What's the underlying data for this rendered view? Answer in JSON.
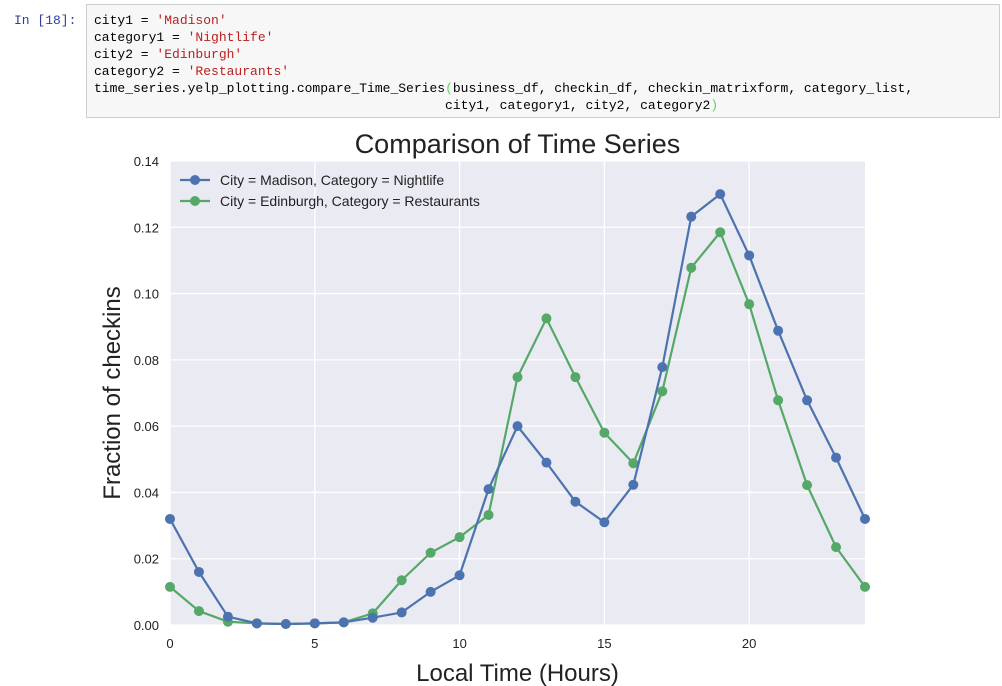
{
  "cell": {
    "prompt": "In [18]:",
    "line1": {
      "var": "city1 = ",
      "val": "'Madison'"
    },
    "line2": {
      "var": "category1 = ",
      "val": "'Nightlife'"
    },
    "line3": {
      "var": "city2 = ",
      "val": "'Edinburgh'"
    },
    "line4": {
      "var": "category2 = ",
      "val": "'Restaurants'"
    },
    "line5": {
      "func": "time_series.yelp_plotting.compare_Time_Series",
      "open": "(",
      "args": "business_df, checkin_df, checkin_matrixform, category_list,"
    },
    "line6": {
      "args": "                                             city1, category1, city2, category2",
      "close": ")"
    }
  },
  "colors": {
    "series1": "#4c72b0",
    "series2": "#55a868",
    "plot_bg": "#eaeaf2",
    "grid": "#ffffff"
  },
  "chart_data": {
    "type": "line",
    "title": "Comparison of Time Series",
    "xlabel": "Local Time (Hours)",
    "ylabel": "Fraction of checkins",
    "xlim": [
      0,
      24
    ],
    "ylim": [
      0,
      0.14
    ],
    "xticks": [
      0,
      5,
      10,
      15,
      20
    ],
    "xtick_labels": [
      "0",
      "5",
      "10",
      "15",
      "20"
    ],
    "yticks": [
      0.0,
      0.02,
      0.04,
      0.06,
      0.08,
      0.1,
      0.12,
      0.14
    ],
    "ytick_labels": [
      "0.00",
      "0.02",
      "0.04",
      "0.06",
      "0.08",
      "0.10",
      "0.12",
      "0.14"
    ],
    "legend_position": "top-left",
    "grid": true,
    "x": [
      0,
      1,
      2,
      3,
      4,
      5,
      6,
      7,
      8,
      9,
      10,
      11,
      12,
      13,
      14,
      15,
      16,
      17,
      18,
      19,
      20,
      21,
      22,
      23,
      24
    ],
    "series": [
      {
        "name": "City = Madison, Category = Nightlife",
        "values": [
          0.032,
          0.016,
          0.0025,
          0.0005,
          0.0003,
          0.0005,
          0.0008,
          0.0022,
          0.0038,
          0.01,
          0.015,
          0.041,
          0.06,
          0.049,
          0.0372,
          0.031,
          0.0423,
          0.0778,
          0.1232,
          0.13,
          0.1115,
          0.0888,
          0.0678,
          0.0505,
          0.032
        ]
      },
      {
        "name": "City = Edinburgh, Category = Restaurants",
        "values": [
          0.0115,
          0.0042,
          0.001,
          0.0005,
          0.0003,
          0.0005,
          0.0008,
          0.0035,
          0.0135,
          0.0218,
          0.0265,
          0.0332,
          0.0748,
          0.0925,
          0.0748,
          0.058,
          0.0488,
          0.0705,
          0.1078,
          0.1185,
          0.0968,
          0.0678,
          0.0422,
          0.0235,
          0.0115
        ]
      }
    ]
  }
}
